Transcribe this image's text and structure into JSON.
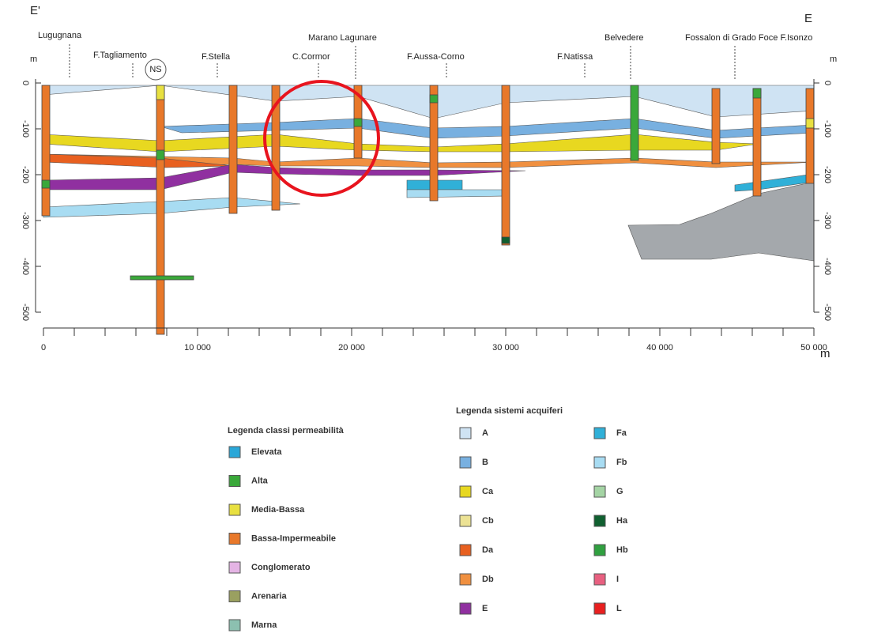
{
  "section": {
    "left_end": "E'",
    "right_end": "E",
    "locations": [
      "Lugugnana",
      "F.Tagliamento",
      "NS",
      "F.Stella",
      "C.Cormor",
      "Marano Lagunare",
      "F.Aussa-Corno",
      "F.Natissa",
      "Belvedere",
      "Fossalon di Grado Foce F.Isonzo"
    ],
    "depth_unit": "m",
    "depth_ticks": [
      0,
      -100,
      -200,
      -300,
      -400,
      -500
    ],
    "distance_unit": "m",
    "distance_ticks": [
      "0",
      "10 000",
      "20 000",
      "30 000",
      "40 000",
      "50 000"
    ]
  },
  "legend_permeability": {
    "title": "Legenda classi permeabilità",
    "items": [
      {
        "label": "Elevata",
        "color": "#2aa7d8"
      },
      {
        "label": "Alta",
        "color": "#3aa83a"
      },
      {
        "label": "Media-Bassa",
        "color": "#e8e040"
      },
      {
        "label": "Bassa-Impermeabile",
        "color": "#e8782a"
      },
      {
        "label": "Conglomerato",
        "color": "#e4b4e4"
      },
      {
        "label": "Arenaria",
        "color": "#9aa060"
      },
      {
        "label": "Marna",
        "color": "#8cc0b0"
      }
    ]
  },
  "legend_aquifers": {
    "title": "Legenda sistemi acquiferi",
    "items": [
      {
        "label": "A",
        "color": "#cfe3f3"
      },
      {
        "label": "B",
        "color": "#78b0e0"
      },
      {
        "label": "Ca",
        "color": "#e8d820"
      },
      {
        "label": "Cb",
        "color": "#ece294"
      },
      {
        "label": "Da",
        "color": "#e86020"
      },
      {
        "label": "Db",
        "color": "#f09040"
      },
      {
        "label": "E",
        "color": "#9030a0"
      },
      {
        "label": "Fa",
        "color": "#30b0d8"
      },
      {
        "label": "Fb",
        "color": "#a8dcf2"
      },
      {
        "label": "G",
        "color": "#a4d4a4"
      },
      {
        "label": "Ha",
        "color": "#106030"
      },
      {
        "label": "Hb",
        "color": "#30a040"
      },
      {
        "label": "I",
        "color": "#e86080"
      },
      {
        "label": "L",
        "color": "#e82020"
      }
    ]
  }
}
